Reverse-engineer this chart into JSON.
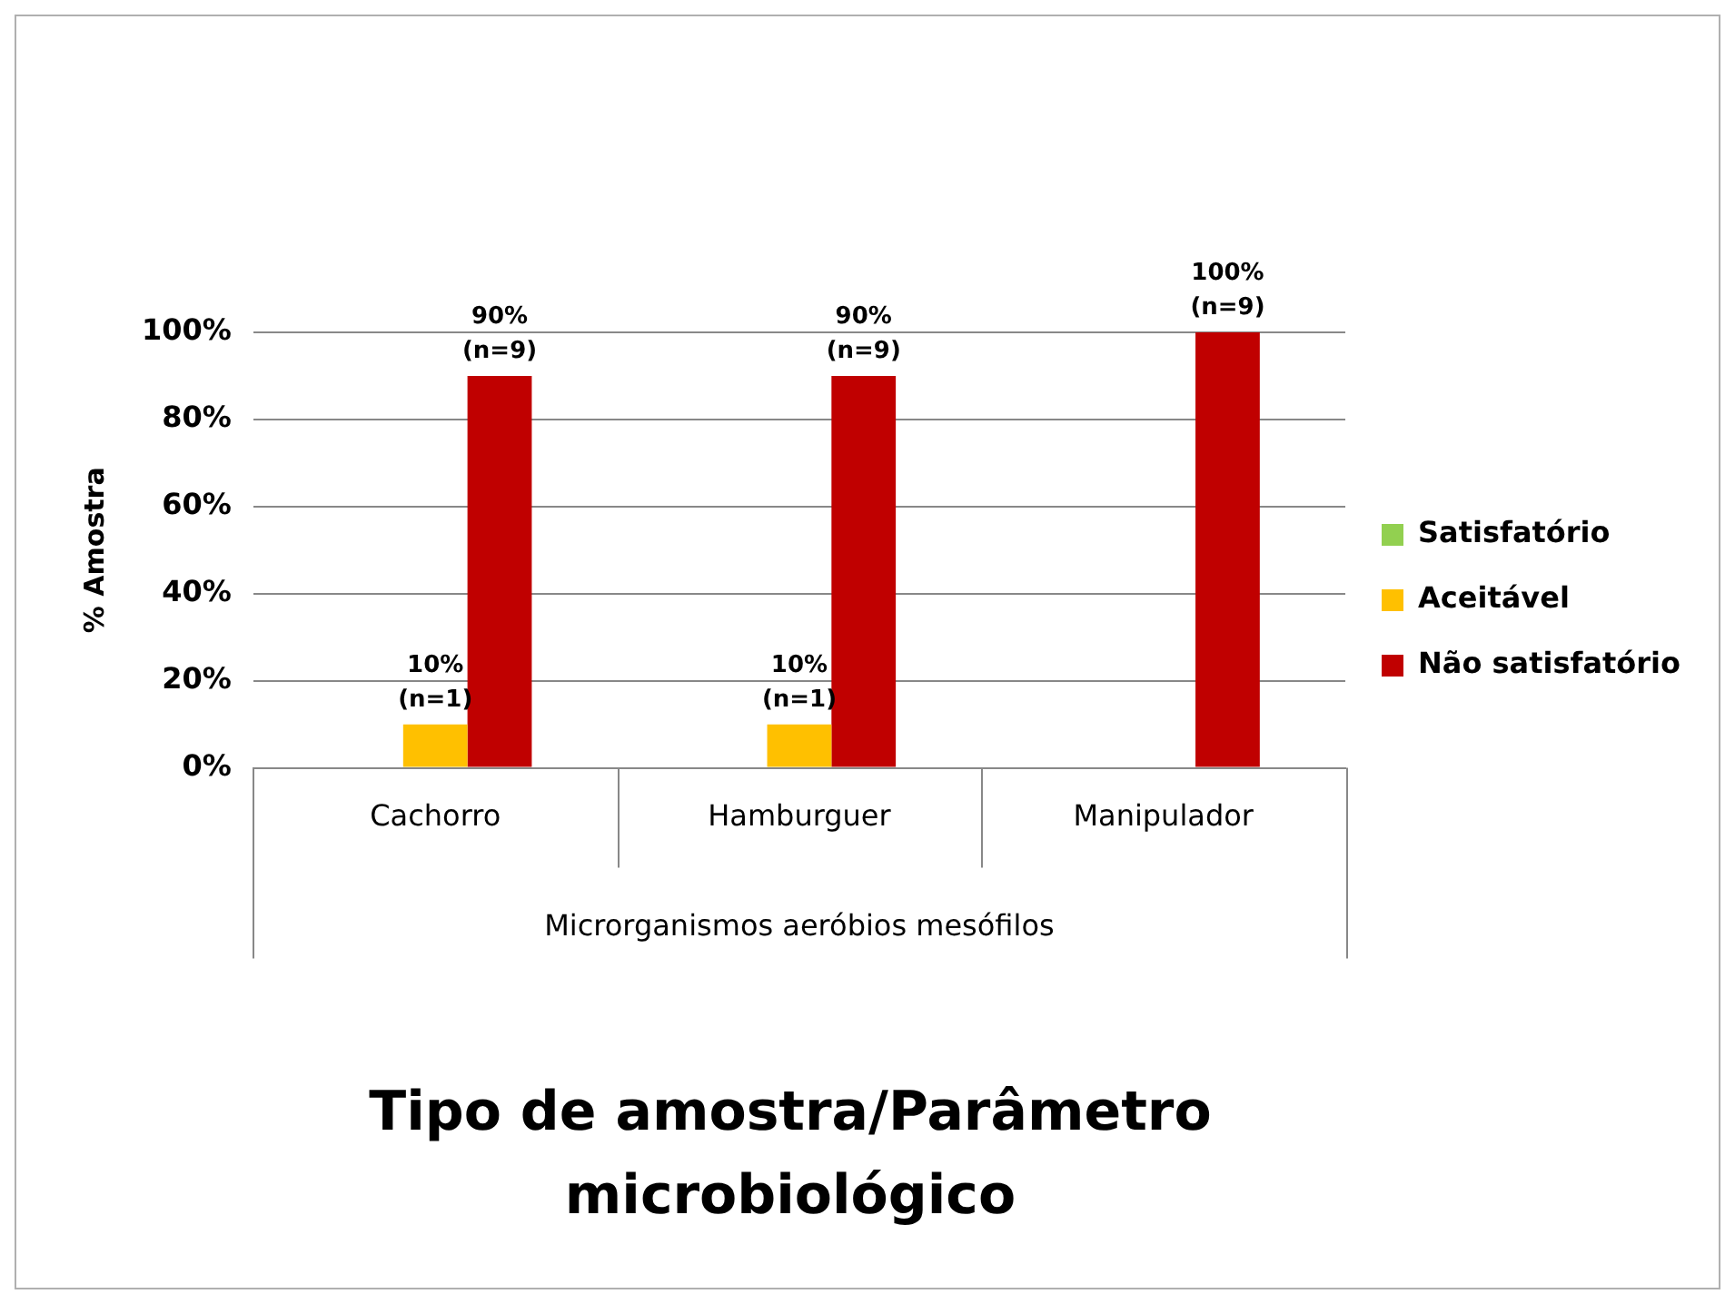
{
  "chart_data": {
    "type": "bar",
    "xlabel": "Tipo de amostra/Parâmetro microbiológico",
    "ylabel": "% Amostra",
    "categories": [
      "Cachorro",
      "Hamburguer",
      "Manipulador"
    ],
    "series": [
      {
        "name": "Satisfatório",
        "color": "#92d050",
        "values": [
          0,
          0,
          0
        ]
      },
      {
        "name": "Aceitável",
        "color": "#ffc000",
        "values": [
          10,
          10,
          0
        ],
        "value_labels": [
          "10% (n=1)",
          "10% (n=1)",
          null
        ]
      },
      {
        "name": "Não satisfatório",
        "color": "#c00000",
        "values": [
          90,
          90,
          100
        ],
        "value_labels": [
          "90% (n=9)",
          "90% (n=9)",
          "100% (n=9)"
        ]
      }
    ],
    "ylim": [
      0,
      100
    ],
    "yticks": [
      {
        "value": 0,
        "label": "0%"
      },
      {
        "value": 20,
        "label": "20%"
      },
      {
        "value": 40,
        "label": "40%"
      },
      {
        "value": 60,
        "label": "60%"
      },
      {
        "value": 80,
        "label": "80%"
      },
      {
        "value": 100,
        "label": "100%"
      }
    ],
    "annotations": [
      "Microrganismos aeróbios mesófilos"
    ],
    "grid": "y",
    "legend": "right"
  }
}
